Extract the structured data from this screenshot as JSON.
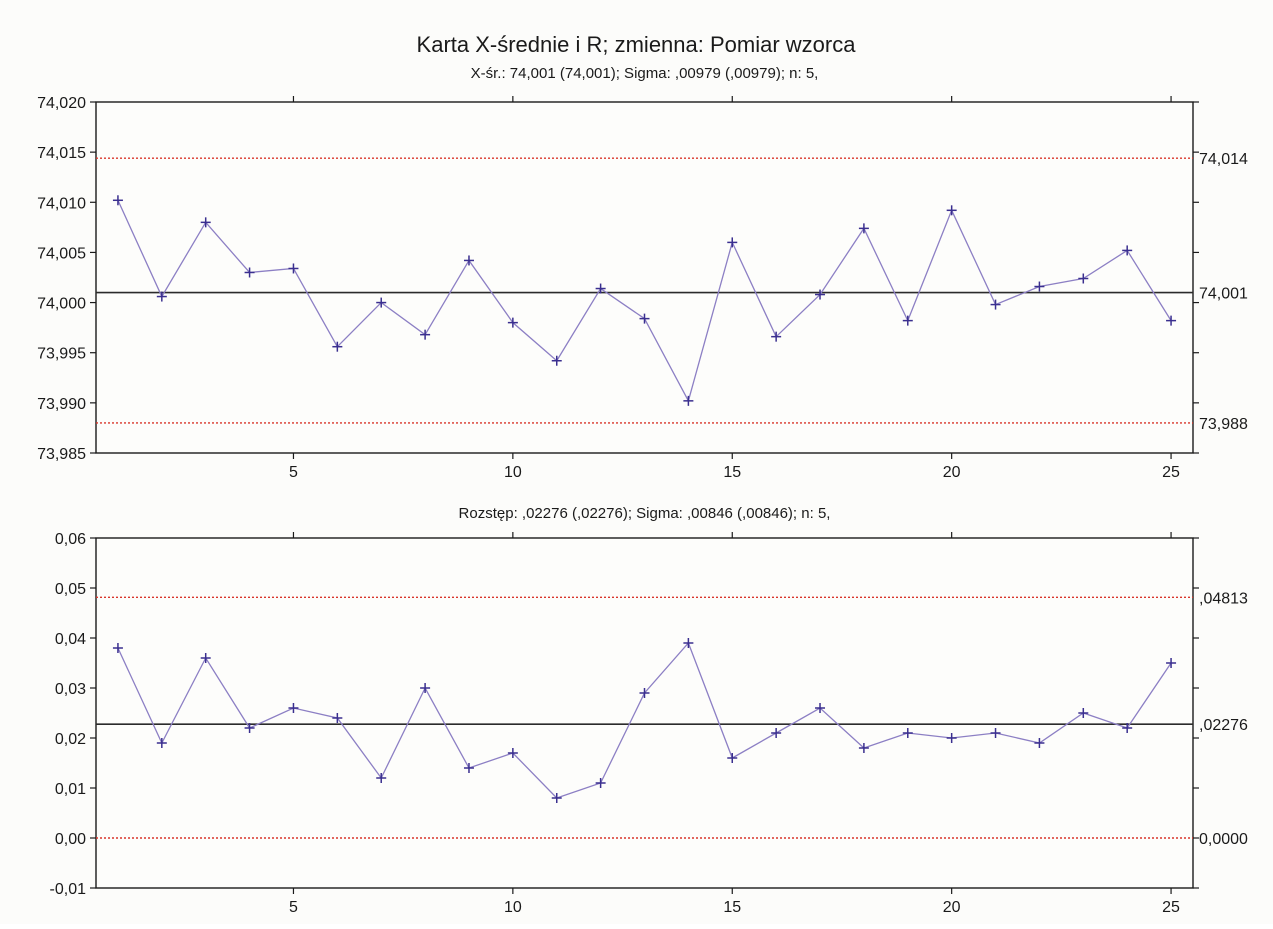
{
  "title": "Karta X-średnie i R; zmienna:  Pomiar wzorca",
  "colors": {
    "background": "#fcfcfa",
    "plot_background": "#fdfdfb",
    "series": "#8c7fc4",
    "marker": "#3a2f8f",
    "center_line": "#2b2b2b",
    "limit_line": "#d9352b",
    "axis": "#1a1a1a"
  },
  "chart_data": [
    {
      "type": "line",
      "subtitle": "X-śr.: 74,001 (74,001); Sigma: ,00979 (,00979); n: 5,",
      "x": [
        1,
        2,
        3,
        4,
        5,
        6,
        7,
        8,
        9,
        10,
        11,
        12,
        13,
        14,
        15,
        16,
        17,
        18,
        19,
        20,
        21,
        22,
        23,
        24,
        25
      ],
      "values": [
        74.0102,
        74.0006,
        74.008,
        74.003,
        74.0034,
        73.9956,
        74.0,
        73.9968,
        74.0042,
        73.998,
        73.9942,
        74.0014,
        73.9984,
        73.9902,
        74.006,
        73.9966,
        74.0008,
        74.0074,
        73.9982,
        74.0092,
        73.9998,
        74.0016,
        74.0024,
        74.0052,
        73.9982
      ],
      "ylim": [
        73.985,
        74.02
      ],
      "xlim": [
        0.5,
        25.5
      ],
      "yticks": [
        74.02,
        74.015,
        74.01,
        74.005,
        74.0,
        73.995,
        73.99,
        73.985
      ],
      "ytick_labels": [
        "74,020",
        "74,015",
        "74,010",
        "74,005",
        "74,000",
        "73,995",
        "73,990",
        "73,985"
      ],
      "xticks": [
        5,
        10,
        15,
        20,
        25
      ],
      "xtick_labels": [
        "5",
        "10",
        "15",
        "20",
        "25"
      ],
      "center": 74.001,
      "ucl": 74.0144,
      "lcl": 73.988,
      "limit_labels": {
        "ucl": "74,014",
        "center": "74,001",
        "lcl": "73,988"
      },
      "grid": false
    },
    {
      "type": "line",
      "subtitle": "Rozstęp: ,02276 (,02276); Sigma: ,00846 (,00846); n: 5,",
      "x": [
        1,
        2,
        3,
        4,
        5,
        6,
        7,
        8,
        9,
        10,
        11,
        12,
        13,
        14,
        15,
        16,
        17,
        18,
        19,
        20,
        21,
        22,
        23,
        24,
        25
      ],
      "values": [
        0.038,
        0.019,
        0.036,
        0.022,
        0.026,
        0.024,
        0.012,
        0.03,
        0.014,
        0.017,
        0.008,
        0.011,
        0.029,
        0.039,
        0.016,
        0.021,
        0.026,
        0.018,
        0.021,
        0.02,
        0.021,
        0.019,
        0.025,
        0.022,
        0.035
      ],
      "ylim": [
        -0.01,
        0.06
      ],
      "xlim": [
        0.5,
        25.5
      ],
      "yticks": [
        0.06,
        0.05,
        0.04,
        0.03,
        0.02,
        0.01,
        0.0,
        -0.01
      ],
      "ytick_labels": [
        "0,06",
        "0,05",
        "0,04",
        "0,03",
        "0,02",
        "0,01",
        "0,00",
        "-0,01"
      ],
      "xticks": [
        5,
        10,
        15,
        20,
        25
      ],
      "xtick_labels": [
        "5",
        "10",
        "15",
        "20",
        "25"
      ],
      "center": 0.02276,
      "ucl": 0.04813,
      "lcl": 0.0,
      "limit_labels": {
        "ucl": ",04813",
        "center": ",02276",
        "lcl": "0,0000"
      },
      "grid": false
    }
  ]
}
